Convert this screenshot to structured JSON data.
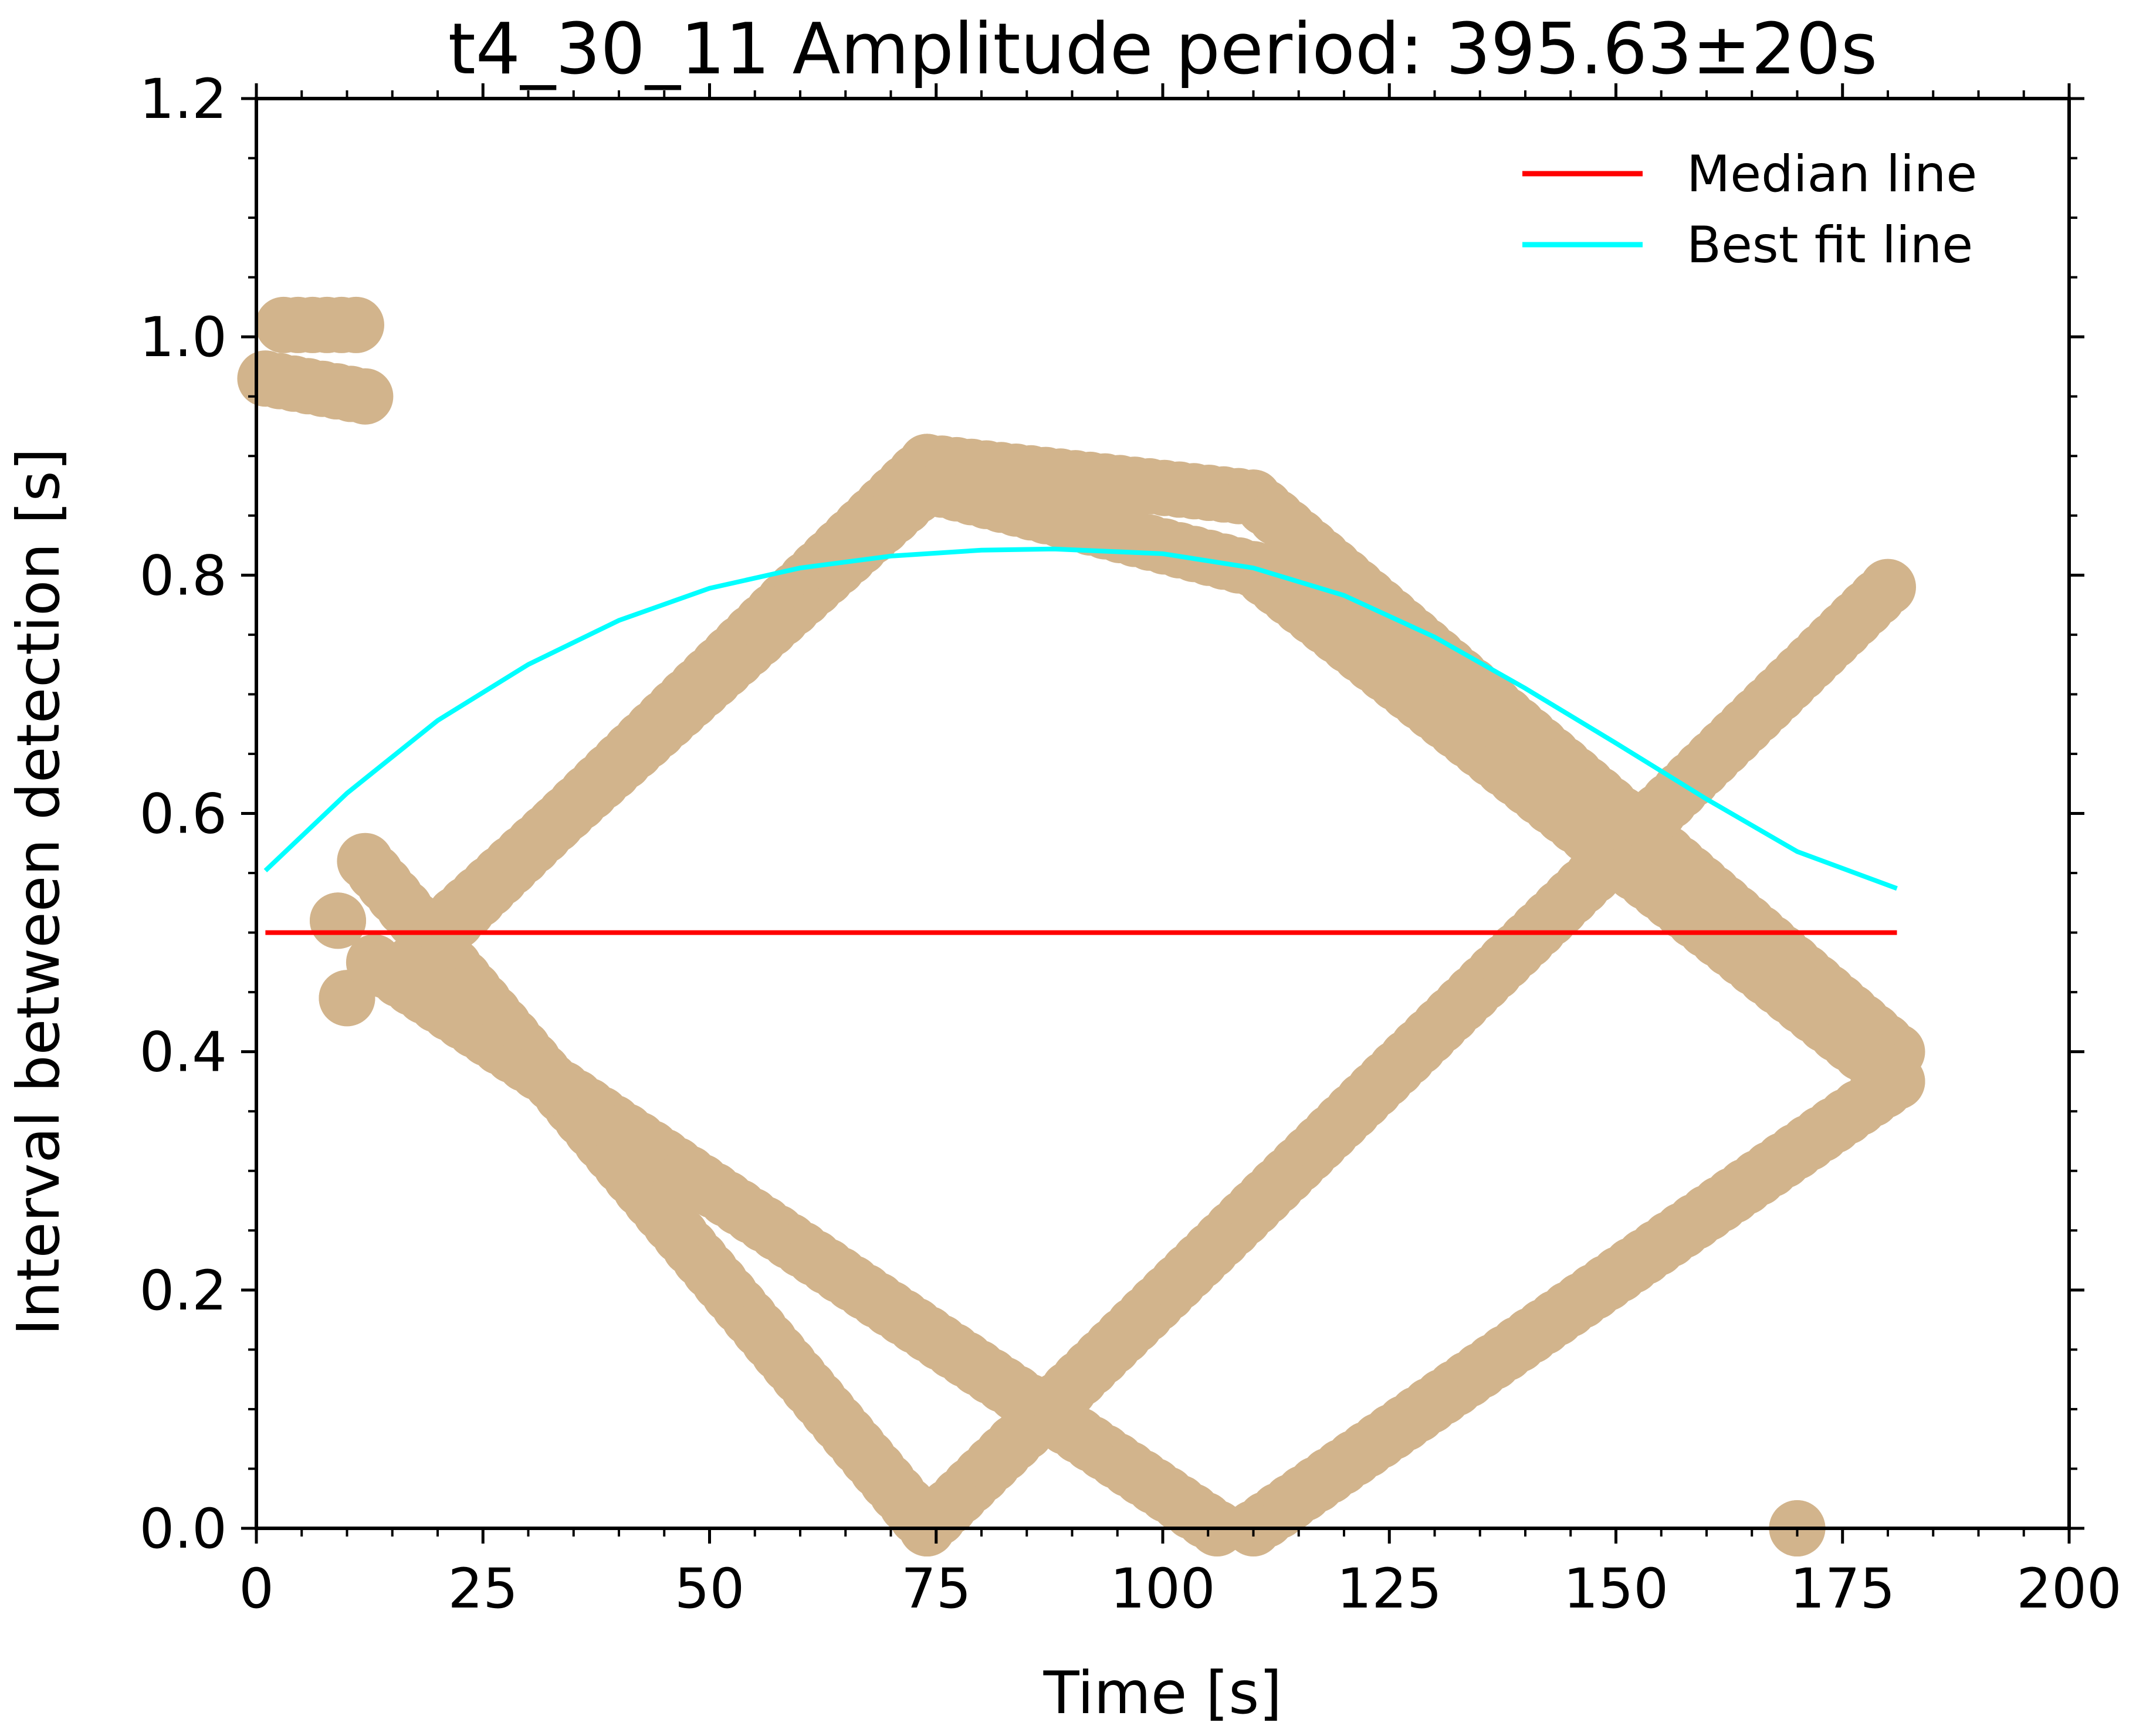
{
  "chart_data": {
    "type": "scatter",
    "title": "t4_30_11 Amplitude period: 395.63±20s",
    "xlabel": "Time [s]",
    "ylabel": "Interval between detection [s]",
    "xlim": [
      0,
      200
    ],
    "ylim": [
      0,
      1.2
    ],
    "x_ticks": [
      "0",
      "25",
      "50",
      "75",
      "100",
      "125",
      "150",
      "175",
      "200"
    ],
    "y_ticks": [
      "0.0",
      "0.2",
      "0.4",
      "0.6",
      "0.8",
      "1.0",
      "1.2"
    ],
    "grid": false,
    "legend_position": "top-right",
    "colors": {
      "points": "#d2b48c",
      "median": "#ff0000",
      "fit": "#00ffff",
      "axes": "#000000"
    },
    "legend": [
      {
        "label": "Median line",
        "color": "#ff0000"
      },
      {
        "label": "Best fit line",
        "color": "#00ffff"
      }
    ],
    "series": [
      {
        "name": "Median line",
        "kind": "line",
        "color": "#ff0000",
        "x": [
          1,
          181
        ],
        "y": [
          0.5,
          0.5
        ]
      },
      {
        "name": "Best fit line",
        "kind": "line",
        "color": "#00ffff",
        "x": [
          1,
          10,
          20,
          30,
          40,
          50,
          60,
          70,
          80,
          88,
          100,
          110,
          120,
          130,
          140,
          150,
          160,
          170,
          181
        ],
        "y": [
          0.552,
          0.617,
          0.678,
          0.725,
          0.762,
          0.789,
          0.806,
          0.816,
          0.821,
          0.822,
          0.818,
          0.806,
          0.783,
          0.748,
          0.705,
          0.659,
          0.612,
          0.568,
          0.537
        ]
      },
      {
        "kind": "scatter",
        "color": "#d2b48c",
        "segments": [
          {
            "x": [
              1,
              12
            ],
            "y": [
              0.965,
              0.95
            ]
          },
          {
            "x": [
              3,
              11
            ],
            "y": [
              1.01,
              1.01
            ]
          },
          {
            "x": [
              9,
              9
            ],
            "y": [
              0.51,
              0.51
            ]
          },
          {
            "x": [
              10,
              10
            ],
            "y": [
              0.445,
              0.445
            ]
          },
          {
            "x": [
              12,
              74
            ],
            "y": [
              0.56,
              0.0
            ]
          },
          {
            "x": [
              13,
              106
            ],
            "y": [
              0.475,
              0.0
            ]
          },
          {
            "x": [
              16,
              74
            ],
            "y": [
              0.465,
              0.895
            ]
          },
          {
            "x": [
              22,
              74
            ],
            "y": [
              0.515,
              0.875
            ]
          },
          {
            "x": [
              74,
              110
            ],
            "y": [
              0.895,
              0.865
            ]
          },
          {
            "x": [
              74,
              110
            ],
            "y": [
              0.875,
              0.805
            ]
          },
          {
            "x": [
              110,
              181
            ],
            "y": [
              0.865,
              0.4
            ]
          },
          {
            "x": [
              110,
              181
            ],
            "y": [
              0.805,
              0.375
            ]
          },
          {
            "x": [
              74,
              180
            ],
            "y": [
              0.0,
              0.79
            ]
          },
          {
            "x": [
              110,
              181
            ],
            "y": [
              0.0,
              0.375
            ]
          },
          {
            "x": [
              170,
              170
            ],
            "y": [
              0.0,
              0.0
            ]
          }
        ]
      }
    ]
  }
}
